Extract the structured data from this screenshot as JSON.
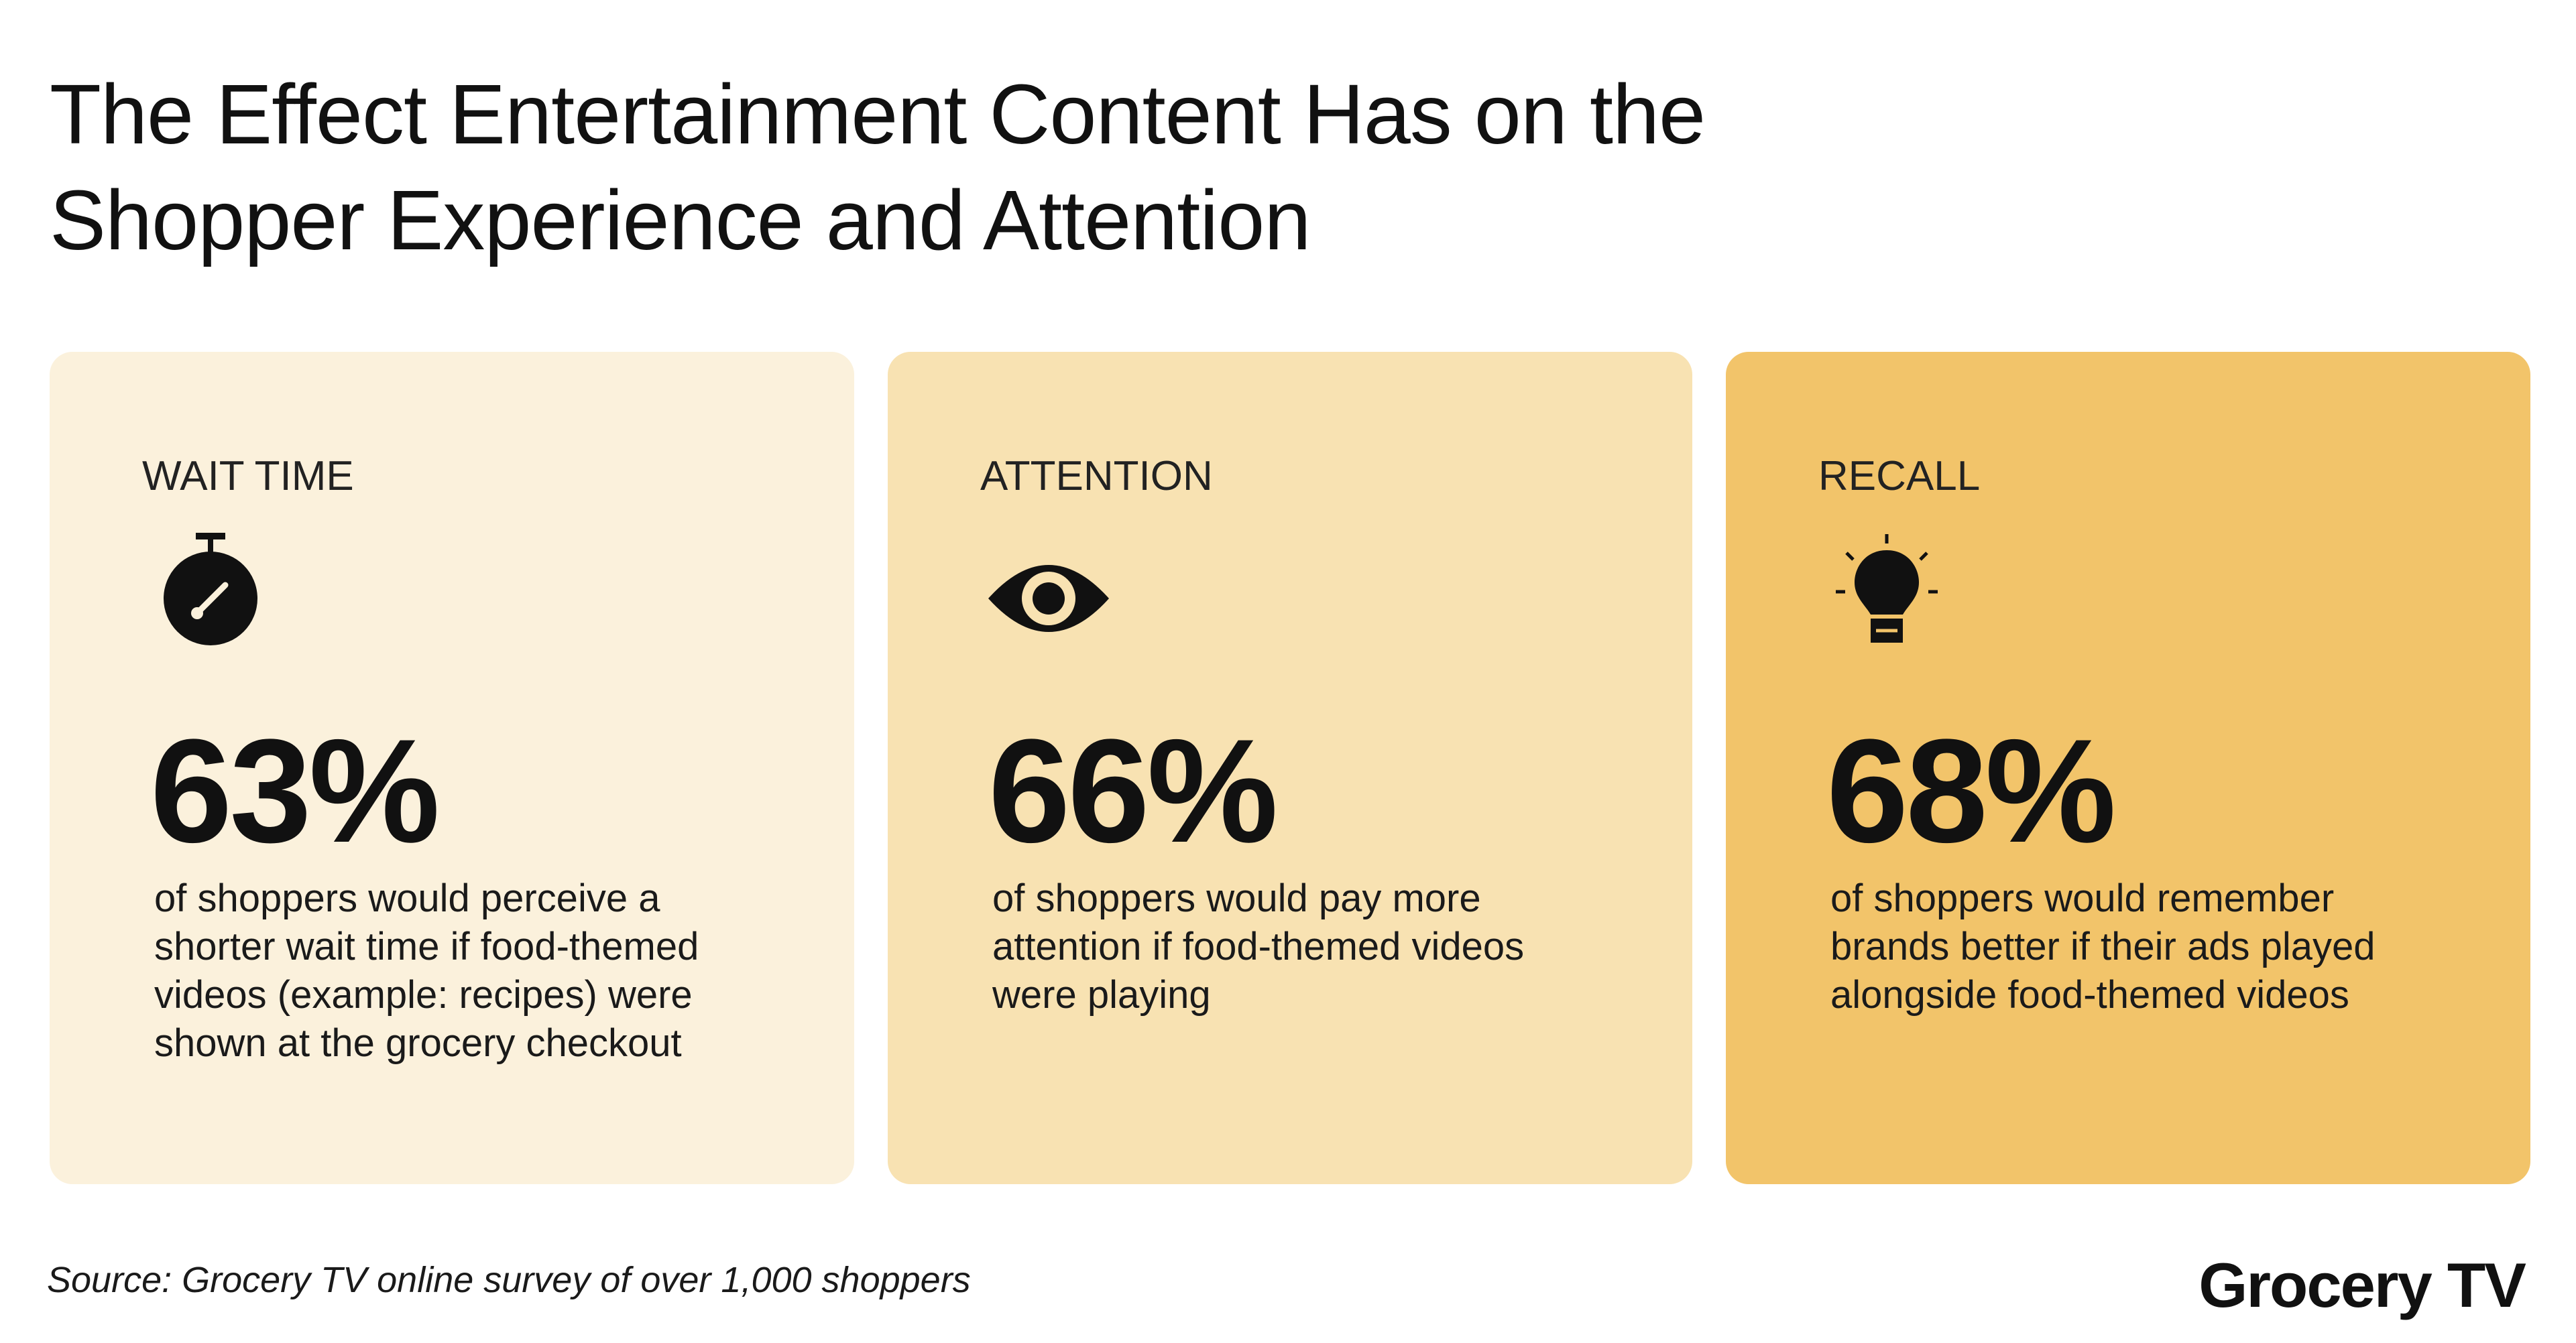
{
  "title": {
    "line1": "The Effect Entertainment Content Has on the",
    "line2": "Shopper Experience and Attention"
  },
  "cards": [
    {
      "label": "WAIT TIME",
      "icon": "stopwatch-icon",
      "stat": "63%",
      "description": [
        "of shoppers would perceive a",
        "shorter wait time if food-themed",
        "videos (example: recipes) were",
        "shown at the grocery checkout"
      ],
      "background": "#fbf1dc"
    },
    {
      "label": "ATTENTION",
      "icon": "eye-icon",
      "stat": "66%",
      "description": [
        "of shoppers would pay more",
        "attention if food-themed videos",
        "were playing"
      ],
      "background": "#f8e2b2"
    },
    {
      "label": "RECALL",
      "icon": "lightbulb-icon",
      "stat": "68%",
      "description": [
        "of shoppers would remember",
        "brands better if their ads played",
        "alongside food-themed videos"
      ],
      "background": "#f2c46a"
    }
  ],
  "footer": {
    "source": "Source: Grocery TV online survey of over 1,000 shoppers",
    "brand": "Grocery TV"
  }
}
